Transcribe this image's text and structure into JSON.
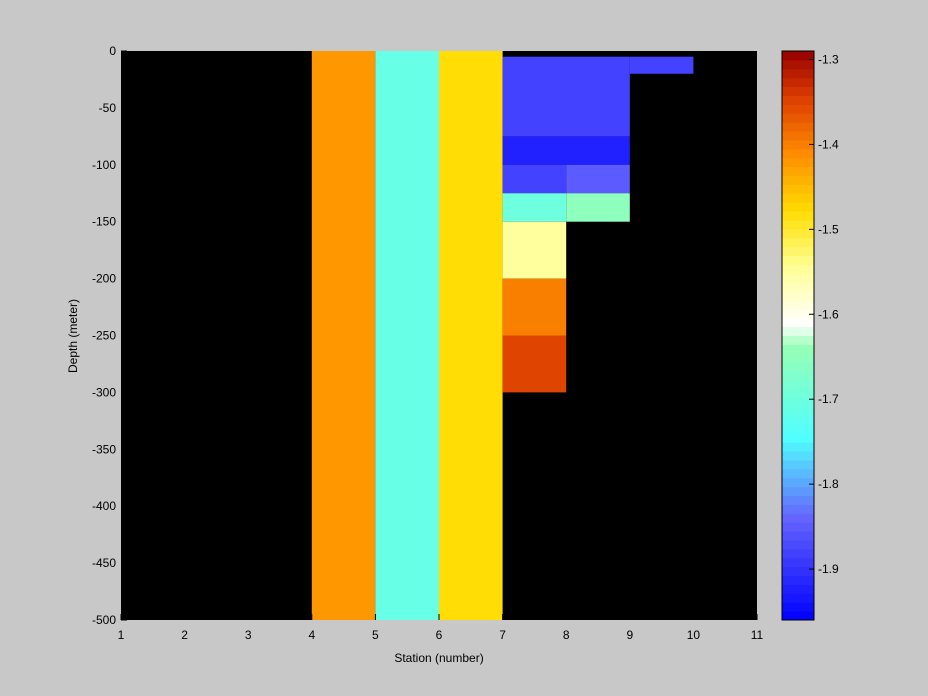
{
  "chart_data": {
    "type": "heatmap",
    "xlabel": "Station (number)",
    "ylabel": "Depth (meter)",
    "xlim": [
      1,
      11
    ],
    "ylim": [
      -500,
      0
    ],
    "x_ticks": [
      1,
      2,
      3,
      4,
      5,
      6,
      7,
      8,
      9,
      10,
      11
    ],
    "y_ticks": [
      0,
      -50,
      -100,
      -150,
      -200,
      -250,
      -300,
      -350,
      -400,
      -450,
      -500
    ],
    "colormap": "jet",
    "clim": [
      -1.96,
      -1.29
    ],
    "colorbar_ticks": [
      -1.3,
      -1.4,
      -1.5,
      -1.6,
      -1.7,
      -1.8,
      -1.9
    ],
    "background_color": "#000000",
    "cells": [
      {
        "x0": 4,
        "x1": 5,
        "y0": -500,
        "y1": 0,
        "value": -1.42
      },
      {
        "x0": 5,
        "x1": 6,
        "y0": -500,
        "y1": 0,
        "value": -1.71
      },
      {
        "x0": 6,
        "x1": 7,
        "y0": -500,
        "y1": 0,
        "value": -1.48
      },
      {
        "x0": 7,
        "x1": 9,
        "y0": -75,
        "y1": -5,
        "value": -1.88
      },
      {
        "x0": 9,
        "x1": 10,
        "y0": -20,
        "y1": -5,
        "value": -1.88
      },
      {
        "x0": 7,
        "x1": 9,
        "y0": -100,
        "y1": -75,
        "value": -1.92
      },
      {
        "x0": 7,
        "x1": 8,
        "y0": -125,
        "y1": -100,
        "value": -1.88
      },
      {
        "x0": 8,
        "x1": 9,
        "y0": -125,
        "y1": -100,
        "value": -1.85
      },
      {
        "x0": 7,
        "x1": 8,
        "y0": -150,
        "y1": -125,
        "value": -1.7
      },
      {
        "x0": 8,
        "x1": 9,
        "y0": -150,
        "y1": -125,
        "value": -1.65
      },
      {
        "x0": 7,
        "x1": 8,
        "y0": -200,
        "y1": -150,
        "value": -1.55
      },
      {
        "x0": 7,
        "x1": 8,
        "y0": -250,
        "y1": -200,
        "value": -1.4
      },
      {
        "x0": 7,
        "x1": 8,
        "y0": -300,
        "y1": -250,
        "value": -1.35
      }
    ]
  }
}
